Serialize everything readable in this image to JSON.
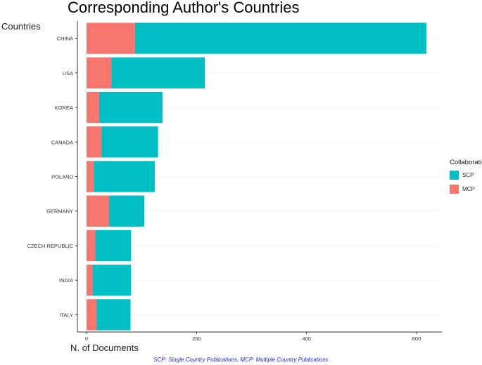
{
  "chart_data": {
    "type": "bar",
    "orientation": "horizontal",
    "stacked": true,
    "title": "Corresponding Author's Countries",
    "xlabel": "N. of Documents",
    "ylabel": "Countries",
    "categories": [
      "CHINA",
      "USA",
      "KOREA",
      "CANADA",
      "POLAND",
      "GERMANY",
      "CZECH REPUBLIC",
      "INDIA",
      "ITALY"
    ],
    "series": [
      {
        "name": "MCP",
        "color": "#F8766D",
        "values": [
          88,
          45,
          23,
          27,
          13,
          41,
          16,
          11,
          18
        ]
      },
      {
        "name": "SCP",
        "color": "#00BFC4",
        "values": [
          530,
          170,
          115,
          103,
          111,
          64,
          65,
          70,
          62
        ]
      }
    ],
    "xlim": [
      -3,
      650
    ],
    "xticks": [
      0,
      200,
      400,
      600
    ],
    "grid": true,
    "legend": {
      "title": "Collaboration",
      "position": "right",
      "entries": [
        "SCP",
        "MCP"
      ]
    },
    "caption": "SCP: Single Country Publications, MCP: Multiple Country Publications"
  }
}
